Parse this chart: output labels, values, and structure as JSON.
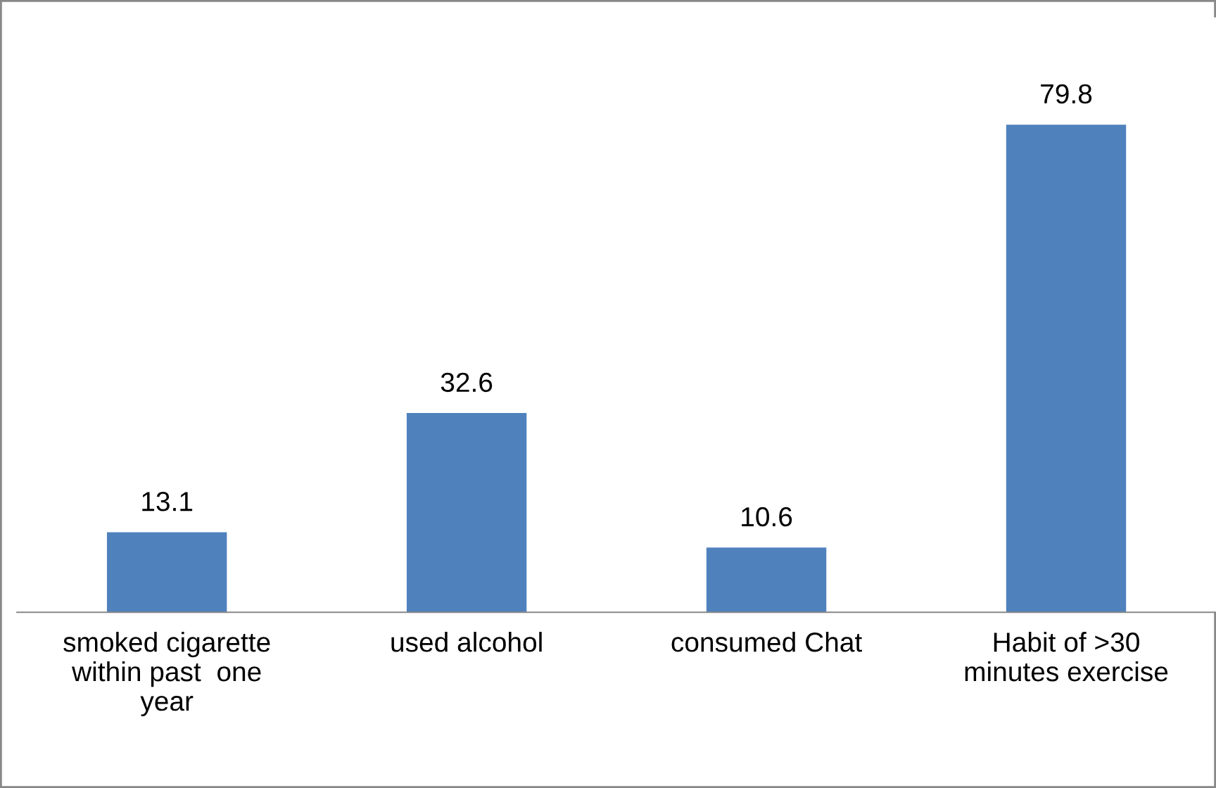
{
  "chart_data": {
    "type": "bar",
    "categories": [
      "smoked cigarette\nwithin past  one\nyear",
      "used alcohol",
      "consumed Chat",
      "Habit of >30\nminutes exercise"
    ],
    "values": [
      13.1,
      32.6,
      10.6,
      79.8
    ],
    "color": "#4f81bd",
    "data_labels": true,
    "tick_labels": "x",
    "grid": false,
    "legend": false
  }
}
